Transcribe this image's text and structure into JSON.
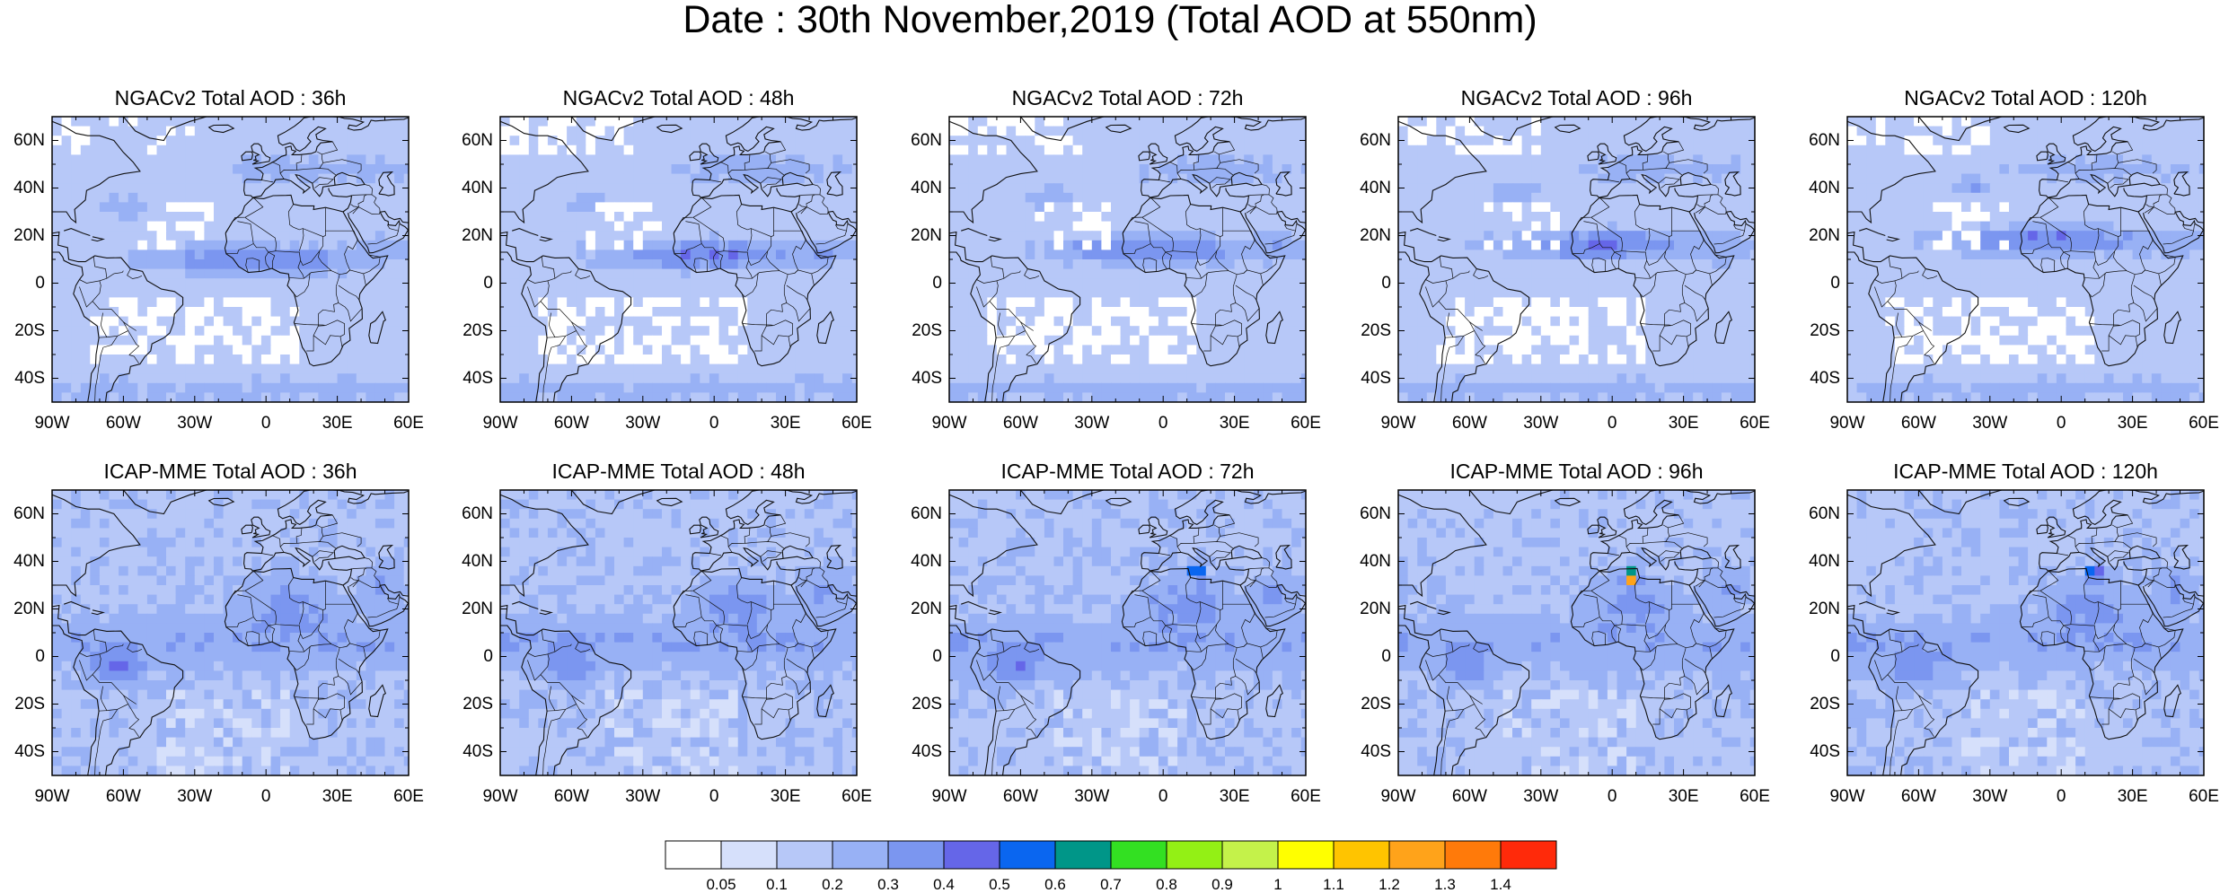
{
  "title": "Date : 30th November,2019 (Total AOD at 550nm)",
  "panels": [
    {
      "title": "NGACv2 Total AOD : 36h",
      "model": "NGACv2",
      "lead": "36h"
    },
    {
      "title": "NGACv2 Total AOD : 48h",
      "model": "NGACv2",
      "lead": "48h"
    },
    {
      "title": "NGACv2 Total AOD : 72h",
      "model": "NGACv2",
      "lead": "72h"
    },
    {
      "title": "NGACv2 Total AOD : 96h",
      "model": "NGACv2",
      "lead": "96h"
    },
    {
      "title": "NGACv2 Total AOD : 120h",
      "model": "NGACv2",
      "lead": "120h"
    },
    {
      "title": "ICAP-MME Total AOD : 36h",
      "model": "ICAP-MME",
      "lead": "36h"
    },
    {
      "title": "ICAP-MME Total AOD : 48h",
      "model": "ICAP-MME",
      "lead": "48h"
    },
    {
      "title": "ICAP-MME Total AOD : 72h",
      "model": "ICAP-MME",
      "lead": "72h"
    },
    {
      "title": "ICAP-MME Total AOD : 96h",
      "model": "ICAP-MME",
      "lead": "96h"
    },
    {
      "title": "ICAP-MME Total AOD : 120h",
      "model": "ICAP-MME",
      "lead": "120h"
    }
  ],
  "lat_ticks": [
    "60N",
    "40N",
    "20N",
    "0",
    "20S",
    "40S"
  ],
  "lon_ticks": [
    "90W",
    "60W",
    "30W",
    "0",
    "30E",
    "60E"
  ],
  "colorbar": {
    "levels": [
      "0.05",
      "0.1",
      "0.2",
      "0.3",
      "0.4",
      "0.5",
      "0.6",
      "0.7",
      "0.8",
      "0.9",
      "1",
      "1.1",
      "1.2",
      "1.3",
      "1.4"
    ],
    "colors": [
      "#ffffff",
      "#d6e0fb",
      "#b7c8f8",
      "#98b1f5",
      "#7b96f0",
      "#6566e8",
      "#0a66f0",
      "#009688",
      "#33e022",
      "#93f015",
      "#c4f24a",
      "#ffff00",
      "#ffc400",
      "#ffa31a",
      "#ff7a0a",
      "#ff2a0a"
    ]
  }
}
